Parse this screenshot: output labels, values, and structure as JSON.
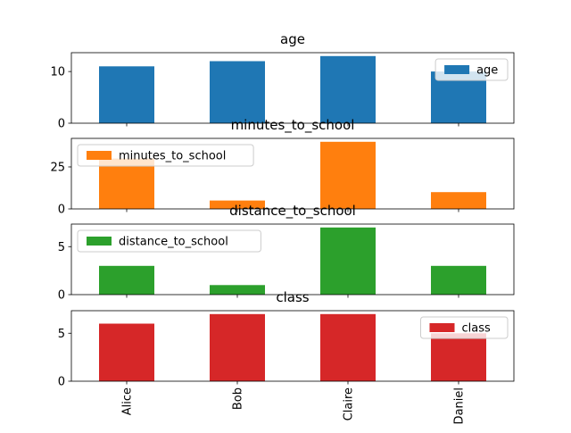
{
  "chart_data": [
    {
      "type": "bar",
      "title": "age",
      "categories": [
        "Alice",
        "Bob",
        "Claire",
        "Daniel"
      ],
      "series": [
        {
          "name": "age",
          "values": [
            11,
            12,
            13,
            10
          ]
        }
      ],
      "color": "#1f77b4",
      "ylim": [
        0,
        13.65
      ],
      "yticks": [
        0,
        10
      ],
      "legend_loc": "upper right"
    },
    {
      "type": "bar",
      "title": "minutes_to_school",
      "categories": [
        "Alice",
        "Bob",
        "Claire",
        "Daniel"
      ],
      "series": [
        {
          "name": "minutes_to_school",
          "values": [
            30,
            5,
            40,
            10
          ]
        }
      ],
      "color": "#ff7f0e",
      "ylim": [
        0,
        42
      ],
      "yticks": [
        0,
        25
      ],
      "legend_loc": "upper left"
    },
    {
      "type": "bar",
      "title": "distance_to_school",
      "categories": [
        "Alice",
        "Bob",
        "Claire",
        "Daniel"
      ],
      "series": [
        {
          "name": "distance_to_school",
          "values": [
            3,
            1,
            7,
            3
          ]
        }
      ],
      "color": "#2ca02c",
      "ylim": [
        0,
        7.35
      ],
      "yticks": [
        0,
        5
      ],
      "legend_loc": "upper left"
    },
    {
      "type": "bar",
      "title": "class",
      "categories": [
        "Alice",
        "Bob",
        "Claire",
        "Daniel"
      ],
      "series": [
        {
          "name": "class",
          "values": [
            6,
            7,
            7,
            5
          ]
        }
      ],
      "color": "#d62728",
      "ylim": [
        0,
        7.35
      ],
      "yticks": [
        0,
        5
      ],
      "legend_loc": "upper right"
    }
  ]
}
